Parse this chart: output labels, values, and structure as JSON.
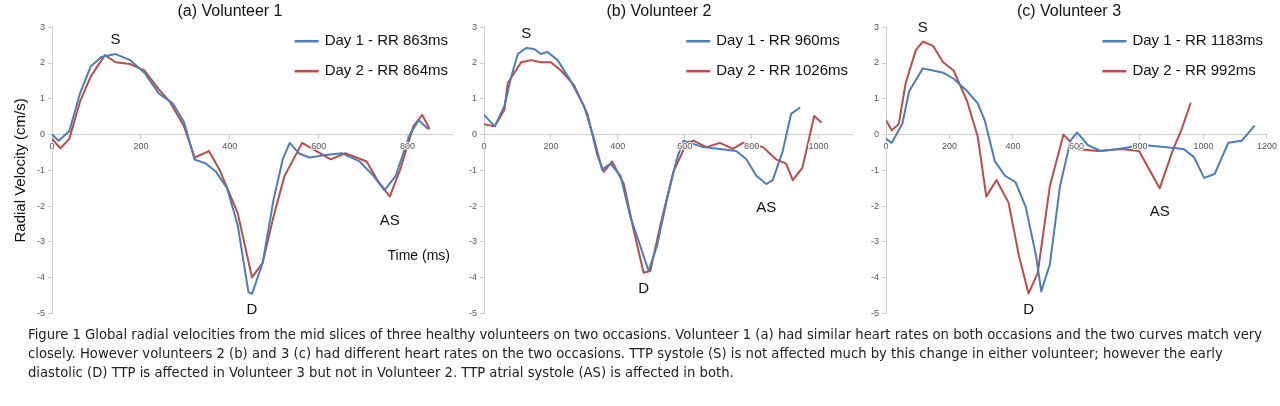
{
  "chart_data": [
    {
      "type": "line",
      "title": "(a) Volunteer 1",
      "xlabel": "Time (ms)",
      "ylabel": "Radial Velocity (cm/s)",
      "xlim": [
        0,
        900
      ],
      "xticks": [
        0,
        200,
        400,
        600,
        800
      ],
      "ylim": [
        -5,
        3
      ],
      "yticks": [
        -5,
        -4,
        -3,
        -2,
        -1,
        0,
        1,
        2,
        3
      ],
      "grid": false,
      "legend": "top right",
      "series": [
        {
          "name": "Day 1 - RR 863ms",
          "color": "#4a7ebb",
          "x": [
            0,
            15,
            39,
            63,
            87,
            111,
            143,
            176,
            208,
            240,
            272,
            297,
            321,
            345,
            369,
            394,
            418,
            442,
            450,
            474,
            498,
            519,
            535,
            555,
            579,
            611,
            652,
            692,
            724,
            748,
            773,
            805,
            825,
            845
          ],
          "values": [
            0,
            -0.17,
            0.1,
            1.15,
            1.9,
            2.17,
            2.25,
            2.08,
            1.73,
            1.15,
            0.87,
            0.35,
            -0.7,
            -0.8,
            -1.04,
            -1.5,
            -2.54,
            -4.4,
            -4.45,
            -3.58,
            -1.85,
            -0.7,
            -0.23,
            -0.52,
            -0.64,
            -0.58,
            -0.52,
            -0.75,
            -1.16,
            -1.56,
            -1.16,
            0,
            0.4,
            0.17
          ]
        },
        {
          "name": "Day 2 - RR 864ms",
          "color": "#be4b48",
          "x": [
            0,
            19,
            39,
            63,
            87,
            119,
            143,
            176,
            208,
            240,
            265,
            297,
            321,
            353,
            377,
            418,
            450,
            474,
            498,
            523,
            563,
            595,
            627,
            660,
            708,
            732,
            760,
            785,
            813,
            833,
            849
          ],
          "values": [
            -0.12,
            -0.38,
            -0.12,
            0.92,
            1.62,
            2.22,
            2.02,
            1.97,
            1.79,
            1.27,
            0.92,
            0.23,
            -0.64,
            -0.46,
            -0.98,
            -2.2,
            -3.99,
            -3.58,
            -2.31,
            -1.16,
            -0.23,
            -0.46,
            -0.69,
            -0.52,
            -0.75,
            -1.27,
            -1.73,
            -0.92,
            0.23,
            0.55,
            0.17
          ]
        }
      ],
      "annotations": [
        {
          "text": "S",
          "x": 143,
          "y": 2.25
        },
        {
          "text": "D",
          "x": 450,
          "y": -4.45
        },
        {
          "text": "AS",
          "x": 760,
          "y": -1.73
        },
        "Figure 1 Global radial velocities from the mid slices of three healthy volunteers on two occasions. Volunteer 1 (a) had similar heart rates on both occasions and the two curves match very closely. However volunteers 2 (b) and 3 (c) had different heart rates on the two occasions. TTP systole (S) is not affected much by this change in either volunteer; however the early diastolic (D) TTP is affected in Volunteer 3 but not in Volunteer 2. TTP atrial systole (AS) is affected in both."
      ]
    },
    {
      "type": "line",
      "title": "(b) Volunteer 2",
      "xlim": [
        0,
        1100
      ],
      "xticks": [
        0,
        200,
        400,
        600,
        800,
        1000
      ],
      "ylim": [
        -5,
        3
      ],
      "yticks": [
        -5,
        -4,
        -3,
        -2,
        -1,
        0,
        1,
        2,
        3
      ],
      "grid": false,
      "legend": "top right",
      "series": [
        {
          "name": "Day 1 - RR 960ms",
          "color": "#4a7ebb",
          "x": [
            0,
            32,
            61,
            81,
            101,
            126,
            150,
            170,
            190,
            220,
            259,
            299,
            329,
            353,
            378,
            408,
            438,
            467,
            492,
            517,
            546,
            576,
            596,
            616,
            655,
            705,
            754,
            784,
            814,
            844,
            863,
            893,
            918,
            943
          ],
          "values": [
            0.55,
            0.23,
            0.8,
            1.6,
            2.25,
            2.42,
            2.39,
            2.25,
            2.31,
            2.08,
            1.5,
            0.8,
            -0.12,
            -0.98,
            -0.81,
            -1.15,
            -2.31,
            -3.11,
            -3.81,
            -3.11,
            -1.85,
            -0.69,
            -0.17,
            -0.23,
            -0.35,
            -0.4,
            -0.46,
            -0.69,
            -1.15,
            -1.38,
            -1.27,
            -0.46,
            0.58,
            0.75
          ]
        },
        {
          "name": "Day 2 - RR 1026ms",
          "color": "#be4b48",
          "x": [
            0,
            32,
            61,
            71,
            111,
            141,
            170,
            200,
            230,
            269,
            309,
            339,
            358,
            383,
            418,
            447,
            477,
            497,
            527,
            566,
            606,
            626,
            665,
            705,
            744,
            774,
            834,
            873,
            903,
            923,
            952,
            987,
            1007
          ],
          "values": [
            0.29,
            0.23,
            0.69,
            1.44,
            2.02,
            2.08,
            2.02,
            2.02,
            1.79,
            1.38,
            0.58,
            -0.58,
            -1.04,
            -0.75,
            -1.38,
            -2.65,
            -3.86,
            -3.81,
            -2.54,
            -1.04,
            -0.23,
            -0.17,
            -0.35,
            -0.23,
            -0.4,
            -0.23,
            -0.35,
            -0.69,
            -0.81,
            -1.27,
            -0.92,
            0.52,
            0.35
          ]
        }
      ],
      "annotations": [
        {
          "text": "S",
          "x": 126,
          "y": 2.42
        },
        {
          "text": "D",
          "x": 477,
          "y": -3.86
        },
        {
          "text": "AS",
          "x": 844,
          "y": -1.38
        }
      ]
    },
    {
      "type": "line",
      "title": "(c) Volunteer 3",
      "xlim": [
        0,
        1200
      ],
      "xticks": [
        0,
        200,
        400,
        600,
        800,
        1000,
        1200
      ],
      "ylim": [
        -5,
        3
      ],
      "yticks": [
        -5,
        -4,
        -3,
        -2,
        -1,
        0,
        1,
        2,
        3
      ],
      "grid": false,
      "legend": "top right",
      "series": [
        {
          "name": "Day 1 - RR 1183ms",
          "color": "#4a7ebb",
          "x": [
            0,
            18,
            51,
            73,
            116,
            148,
            180,
            213,
            256,
            289,
            311,
            343,
            375,
            408,
            440,
            473,
            489,
            516,
            548,
            581,
            602,
            635,
            678,
            732,
            808,
            884,
            937,
            970,
            1002,
            1035,
            1078,
            1121,
            1159
          ],
          "values": [
            -0.12,
            -0.23,
            0.29,
            1.21,
            1.85,
            1.79,
            1.73,
            1.56,
            1.21,
            0.87,
            0.4,
            -0.75,
            -1.15,
            -1.33,
            -2.02,
            -3.4,
            -4.38,
            -3.63,
            -1.44,
            -0.17,
            0.06,
            -0.29,
            -0.46,
            -0.4,
            -0.29,
            -0.35,
            -0.4,
            -0.63,
            -1.21,
            -1.1,
            -0.23,
            -0.17,
            0.23
          ]
        },
        {
          "name": "Day 2 - RR 992ms",
          "color": "#be4b48",
          "x": [
            0,
            18,
            40,
            62,
            94,
            116,
            148,
            180,
            213,
            256,
            289,
            316,
            348,
            386,
            419,
            449,
            478,
            516,
            559,
            602,
            667,
            743,
            797,
            862,
            905,
            932,
            959
          ],
          "values": [
            0.4,
            0.12,
            0.29,
            1.44,
            2.36,
            2.6,
            2.48,
            2.02,
            1.79,
            0.92,
            -0.06,
            -1.73,
            -1.27,
            -1.9,
            -3.4,
            -4.44,
            -3.86,
            -1.44,
            0,
            -0.4,
            -0.46,
            -0.4,
            -0.46,
            -1.5,
            -0.4,
            0.17,
            0.87
          ]
        }
      ],
      "annotations": [
        {
          "text": "S",
          "x": 116,
          "y": 2.6
        },
        {
          "text": "D",
          "x": 449,
          "y": -4.44
        },
        {
          "text": "AS",
          "x": 862,
          "y": -1.5
        }
      ]
    }
  ]
}
